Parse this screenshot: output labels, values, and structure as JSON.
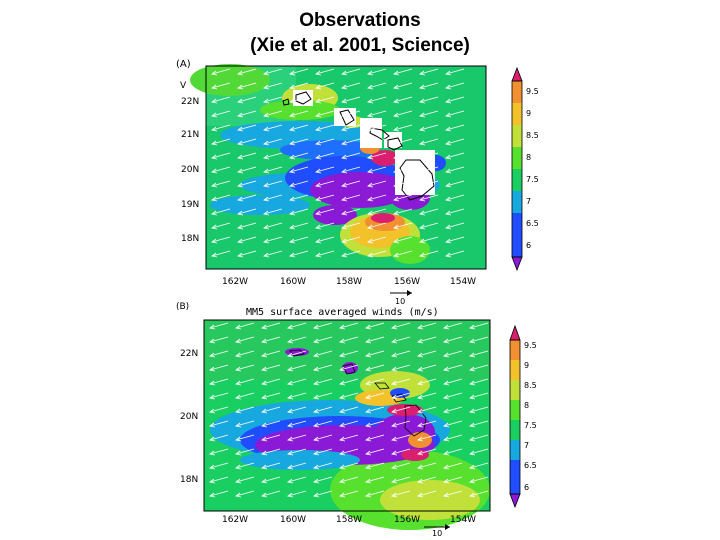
{
  "title": {
    "line1": "Observations",
    "line2": "(Xie et al. 2001, Science)"
  },
  "panel_a": {
    "label": "(A)",
    "sub_label": "V",
    "lat_labels": [
      "22N",
      "21N",
      "20N",
      "19N",
      "18N"
    ],
    "lon_labels": [
      "162W",
      "160W",
      "158W",
      "156W",
      "154W"
    ],
    "vector_ref": "10",
    "colorbar_labels": [
      "9.5",
      "9",
      "8.5",
      "8",
      "7.5",
      "7",
      "6.5",
      "6"
    ]
  },
  "panel_b": {
    "label": "(B)",
    "caption": "MM5 surface averaged winds (m/s)",
    "lat_labels": [
      "22N",
      "20N",
      "18N"
    ],
    "lon_labels": [
      "162W",
      "160W",
      "158W",
      "156W",
      "154W"
    ],
    "vector_ref": "10",
    "colorbar_labels": [
      "9.5",
      "9",
      "8.5",
      "8",
      "7.5",
      "7",
      "6.5",
      "6"
    ]
  },
  "colors": {
    "c6": "#8a1ad6",
    "c6_5": "#1f4dff",
    "c7": "#18a8e0",
    "c7_5": "#19cf62",
    "c8": "#58e02e",
    "c8_5": "#c2e03a",
    "c9": "#f3c22a",
    "c9_5": "#f09030",
    "c10": "#d91f6e"
  }
}
